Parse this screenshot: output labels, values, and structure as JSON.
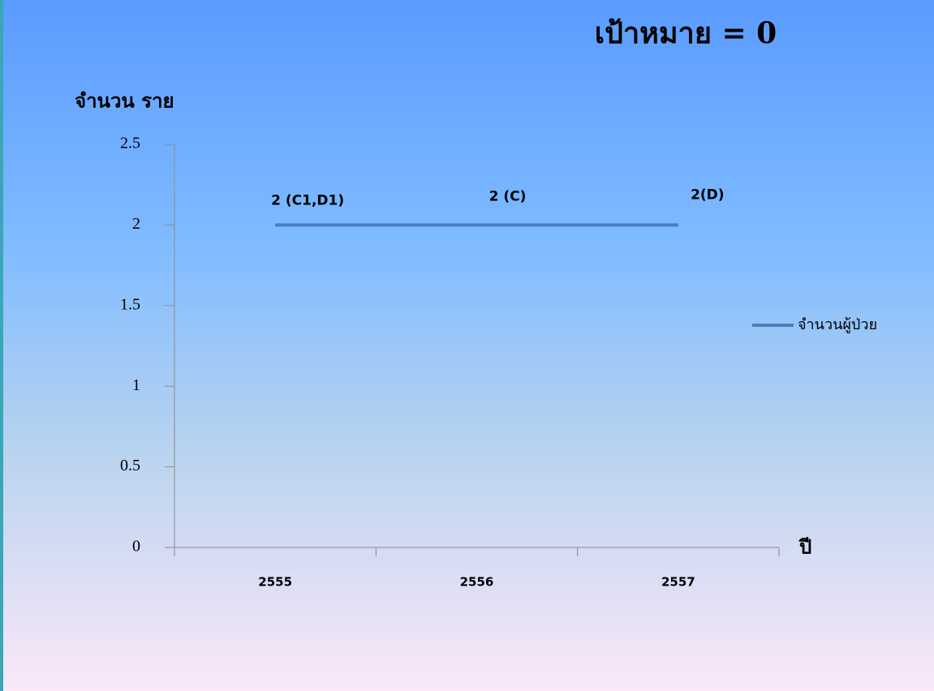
{
  "chart_data": {
    "type": "line",
    "title": "เป้าหมาย = 0",
    "y_label": "จำนวน ราย",
    "x_label": "ปี",
    "categories": [
      "2555",
      "2556",
      "2557"
    ],
    "series": [
      {
        "name": "จำนวนผู้ป่วย",
        "color": "#4a7ebb",
        "values": [
          2,
          2,
          2
        ],
        "value_labels": [
          "2 (C1,D1)",
          "2 (C)",
          "2(D)"
        ]
      }
    ],
    "ylim": [
      0,
      2.5
    ],
    "yticks": [
      0,
      0.5,
      1,
      1.5,
      2,
      2.5
    ],
    "legend": "right",
    "grid": false
  }
}
